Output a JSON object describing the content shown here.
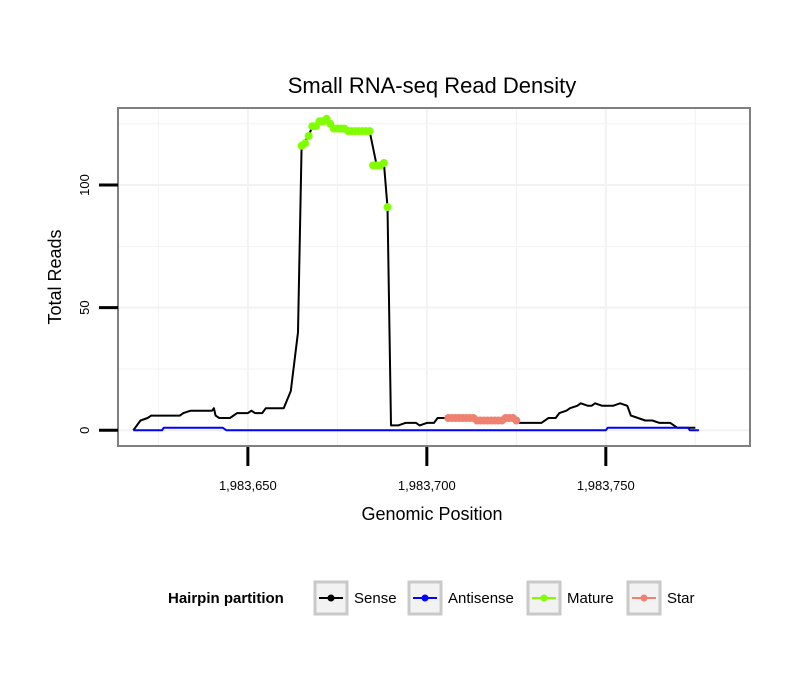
{
  "chart_data": {
    "type": "line",
    "title": "Small RNA-seq Read Density",
    "xlabel": "Genomic Position",
    "ylabel": "Total Reads",
    "xlim": [
      1983614,
      1983790
    ],
    "ylim": [
      -6,
      131
    ],
    "x_ticks": [
      1983650,
      1983700,
      1983750
    ],
    "x_tick_labels": [
      "1,983,650",
      "1,983,700",
      "1,983,750"
    ],
    "y_ticks": [
      0,
      50,
      100
    ],
    "y_tick_labels": [
      "0",
      "50",
      "100"
    ],
    "grid": true,
    "legend": {
      "title": "Hairpin partition",
      "position": "bottom",
      "entries": [
        "Sense",
        "Antisense",
        "Mature",
        "Star"
      ]
    },
    "colors": {
      "sense": "#000000",
      "antisense": "#0000ff",
      "mature": "#7fff00",
      "star": "#f08070"
    },
    "series": [
      {
        "name": "Sense",
        "kind": "line",
        "points": [
          [
            1983618,
            0
          ],
          [
            1983620,
            4
          ],
          [
            1983622,
            5
          ],
          [
            1983623,
            6
          ],
          [
            1983625,
            6
          ],
          [
            1983628,
            6
          ],
          [
            1983631,
            6
          ],
          [
            1983632,
            7
          ],
          [
            1983634,
            8
          ],
          [
            1983637,
            8
          ],
          [
            1983640,
            8
          ],
          [
            1983640.5,
            9
          ],
          [
            1983641,
            6
          ],
          [
            1983642,
            5
          ],
          [
            1983645,
            5
          ],
          [
            1983647,
            7
          ],
          [
            1983650,
            7
          ],
          [
            1983651,
            8
          ],
          [
            1983652,
            7
          ],
          [
            1983654,
            7
          ],
          [
            1983655,
            9
          ],
          [
            1983658,
            9
          ],
          [
            1983660,
            9
          ],
          [
            1983662,
            16
          ],
          [
            1983664,
            40
          ],
          [
            1983665,
            116
          ],
          [
            1983667,
            120
          ],
          [
            1983668,
            124
          ],
          [
            1983670,
            126
          ],
          [
            1983672,
            127
          ],
          [
            1983673,
            125
          ],
          [
            1983674,
            123
          ],
          [
            1983676,
            123
          ],
          [
            1983678,
            122
          ],
          [
            1983681,
            122
          ],
          [
            1983684,
            122
          ],
          [
            1983686,
            108
          ],
          [
            1983688,
            109
          ],
          [
            1983689,
            91
          ],
          [
            1983690,
            2
          ],
          [
            1983692,
            2
          ],
          [
            1983694,
            3
          ],
          [
            1983697,
            3
          ],
          [
            1983698,
            2
          ],
          [
            1983700,
            3
          ],
          [
            1983702,
            3
          ],
          [
            1983703,
            5
          ],
          [
            1983706,
            5
          ],
          [
            1983709,
            5
          ],
          [
            1983712,
            5
          ],
          [
            1983714,
            4
          ],
          [
            1983717,
            4
          ],
          [
            1983720,
            4
          ],
          [
            1983722,
            5
          ],
          [
            1983724,
            4
          ],
          [
            1983726,
            3
          ],
          [
            1983729,
            3
          ],
          [
            1983732,
            3
          ],
          [
            1983734,
            5
          ],
          [
            1983736,
            5
          ],
          [
            1983737,
            7
          ],
          [
            1983739,
            8
          ],
          [
            1983740,
            9
          ],
          [
            1983742,
            10
          ],
          [
            1983743,
            11
          ],
          [
            1983745,
            10
          ],
          [
            1983746,
            10
          ],
          [
            1983747,
            11
          ],
          [
            1983749,
            10
          ],
          [
            1983752,
            10
          ],
          [
            1983754,
            11
          ],
          [
            1983756,
            10
          ],
          [
            1983757,
            6
          ],
          [
            1983759,
            5
          ],
          [
            1983761,
            4
          ],
          [
            1983763,
            4
          ],
          [
            1983765,
            3
          ],
          [
            1983768,
            3
          ],
          [
            1983770,
            1
          ],
          [
            1983775,
            1
          ]
        ]
      },
      {
        "name": "Antisense",
        "kind": "line",
        "points": [
          [
            1983618,
            0
          ],
          [
            1983626,
            0
          ],
          [
            1983626.5,
            1
          ],
          [
            1983643,
            1
          ],
          [
            1983644,
            0
          ],
          [
            1983750,
            0
          ],
          [
            1983750.5,
            1
          ],
          [
            1983773,
            1
          ],
          [
            1983773.5,
            0
          ],
          [
            1983776,
            0
          ]
        ]
      },
      {
        "name": "Mature",
        "kind": "points",
        "points": [
          [
            1983665,
            116
          ],
          [
            1983666,
            117
          ],
          [
            1983667,
            120
          ],
          [
            1983668,
            124
          ],
          [
            1983669,
            124
          ],
          [
            1983670,
            126
          ],
          [
            1983671,
            126
          ],
          [
            1983672,
            127
          ],
          [
            1983673,
            125
          ],
          [
            1983674,
            123
          ],
          [
            1983675,
            123
          ],
          [
            1983676,
            123
          ],
          [
            1983677,
            123
          ],
          [
            1983678,
            122
          ],
          [
            1983679,
            122
          ],
          [
            1983680,
            122
          ],
          [
            1983681,
            122
          ],
          [
            1983682,
            122
          ],
          [
            1983683,
            122
          ],
          [
            1983684,
            122
          ],
          [
            1983685,
            108
          ],
          [
            1983686,
            108
          ],
          [
            1983687,
            108
          ],
          [
            1983688,
            109
          ],
          [
            1983689,
            91
          ]
        ]
      },
      {
        "name": "Star",
        "kind": "points",
        "points": [
          [
            1983706,
            5
          ],
          [
            1983707,
            5
          ],
          [
            1983708,
            5
          ],
          [
            1983709,
            5
          ],
          [
            1983710,
            5
          ],
          [
            1983711,
            5
          ],
          [
            1983712,
            5
          ],
          [
            1983713,
            5
          ],
          [
            1983714,
            4
          ],
          [
            1983715,
            4
          ],
          [
            1983716,
            4
          ],
          [
            1983717,
            4
          ],
          [
            1983718,
            4
          ],
          [
            1983719,
            4
          ],
          [
            1983720,
            4
          ],
          [
            1983721,
            4
          ],
          [
            1983722,
            5
          ],
          [
            1983723,
            5
          ],
          [
            1983724,
            5
          ],
          [
            1983725,
            4
          ]
        ]
      }
    ]
  }
}
